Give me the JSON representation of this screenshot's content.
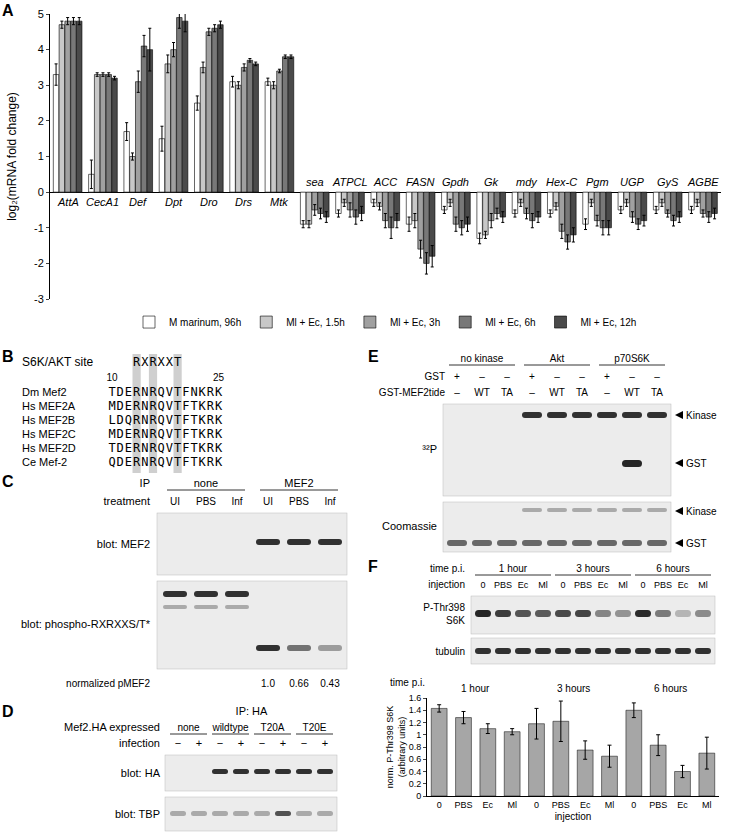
{
  "chart_data": [
    {
      "type": "bar",
      "y_label": "log₂(mRNA fold change)",
      "categories": [
        "AttA",
        "CecA1",
        "Def",
        "Dpt",
        "Dro",
        "Drs",
        "Mtk",
        "sea",
        "ATPCL",
        "ACC",
        "FASN",
        "Gpdh",
        "Gk",
        "mdy",
        "Hex-C",
        "Pgm",
        "UGP",
        "GyS",
        "AGBE"
      ],
      "series": [
        {
          "name": "M marinum, 96h",
          "color": "#ffffff",
          "values": [
            3.3,
            0.5,
            1.7,
            1.5,
            2.5,
            3.1,
            3.1,
            -0.9,
            -0.6,
            -0.3,
            -0.9,
            -0.5,
            -1.3,
            -0.6,
            -0.6,
            -0.9,
            -0.5,
            -0.5,
            -0.5
          ],
          "errors": [
            0.3,
            0.4,
            0.25,
            0.35,
            0.2,
            0.15,
            0.1,
            0.1,
            0.1,
            0.1,
            0.2,
            0.1,
            0.15,
            0.1,
            0.1,
            0.15,
            0.1,
            0.1,
            0.1
          ]
        },
        {
          "name": "Ml + Ec, 1.5h",
          "color": "#c8c8c8",
          "values": [
            4.7,
            3.3,
            1.0,
            3.6,
            3.5,
            3.0,
            3.0,
            -0.9,
            -0.3,
            -0.4,
            -0.8,
            -0.3,
            -1.2,
            -0.3,
            -0.4,
            -0.3,
            -0.3,
            -0.3,
            -0.3
          ],
          "errors": [
            0.1,
            0.05,
            0.1,
            0.25,
            0.15,
            0.1,
            0.1,
            0.1,
            0.1,
            0.1,
            0.2,
            0.1,
            0.1,
            0.1,
            0.1,
            0.1,
            0.1,
            0.1,
            0.1
          ]
        },
        {
          "name": "Ml + Ec, 3h",
          "color": "#a0a0a0",
          "values": [
            4.8,
            3.3,
            3.1,
            4.0,
            4.5,
            3.5,
            3.4,
            -0.5,
            -0.5,
            -0.8,
            -1.6,
            -0.9,
            -0.8,
            -0.6,
            -1.1,
            -0.8,
            -0.7,
            -0.6,
            -0.6
          ],
          "errors": [
            0.1,
            0.05,
            0.3,
            0.2,
            0.1,
            0.1,
            0.05,
            0.15,
            0.2,
            0.2,
            0.25,
            0.2,
            0.2,
            0.15,
            0.2,
            0.15,
            0.15,
            0.1,
            0.1
          ]
        },
        {
          "name": "Ml + Ec, 6h",
          "color": "#787878",
          "values": [
            4.8,
            3.3,
            4.1,
            4.9,
            4.6,
            3.7,
            3.8,
            -0.6,
            -0.7,
            -1.0,
            -2.0,
            -1.0,
            -0.6,
            -0.8,
            -1.4,
            -1.0,
            -0.9,
            -0.8,
            -0.7
          ],
          "errors": [
            0.1,
            0.05,
            0.3,
            0.3,
            0.1,
            0.05,
            0.05,
            0.15,
            0.2,
            0.3,
            0.3,
            0.2,
            0.15,
            0.2,
            0.2,
            0.2,
            0.15,
            0.15,
            0.15
          ]
        },
        {
          "name": "Ml + Ec, 12h",
          "color": "#4a4a4a",
          "values": [
            4.8,
            3.2,
            4.0,
            4.8,
            4.7,
            3.6,
            3.8,
            -0.7,
            -0.6,
            -0.8,
            -1.8,
            -0.9,
            -0.7,
            -0.7,
            -1.2,
            -1.0,
            -0.8,
            -0.7,
            -0.6
          ],
          "errors": [
            0.1,
            0.05,
            0.6,
            0.3,
            0.1,
            0.05,
            0.05,
            0.15,
            0.2,
            0.2,
            0.3,
            0.2,
            0.15,
            0.15,
            0.2,
            0.2,
            0.15,
            0.15,
            0.15
          ]
        }
      ],
      "ylim": [
        -3,
        5
      ],
      "yticks": [
        -3,
        -2,
        -1,
        0,
        1,
        2,
        3,
        4,
        5
      ],
      "grid": false,
      "legend": "bottom",
      "tick_labels": "y"
    },
    {
      "type": "bar",
      "y_label": [
        "norm. P-Thr398 S6K",
        "(arbitrary units)"
      ],
      "x_label": "injection",
      "group_title": "time p.i.",
      "groups": [
        "1 hour",
        "3 hours",
        "6 hours"
      ],
      "categories": [
        "0",
        "PBS",
        "Ec",
        "Ml",
        "0",
        "PBS",
        "Ec",
        "Ml",
        "0",
        "PBS",
        "Ec",
        "Ml"
      ],
      "values": [
        1.43,
        1.28,
        1.1,
        1.05,
        1.18,
        1.22,
        0.75,
        0.65,
        1.4,
        0.83,
        0.4,
        0.7
      ],
      "errors": [
        0.06,
        0.1,
        0.08,
        0.05,
        0.25,
        0.33,
        0.15,
        0.18,
        0.12,
        0.17,
        0.1,
        0.26
      ],
      "color": "#a6a6a6",
      "ylim": [
        0,
        1.6
      ],
      "yticks": [
        0,
        0.2,
        0.4,
        0.6,
        0.8,
        1,
        1.2,
        1.4,
        1.6
      ],
      "grid": false
    }
  ],
  "panels": {
    "A": {
      "label": "A"
    },
    "B": {
      "label": "B",
      "site_name": "S6K/AKT site",
      "site_motif": "RXRXXT",
      "positions": [
        "10",
        "25"
      ],
      "rows": [
        [
          "Dm Mef2",
          "TDERNRQVTFNKRK"
        ],
        [
          "Hs MEF2A",
          "MDERNRQVTFTKRK"
        ],
        [
          "Hs MEF2B",
          "LDQRNRQVTFTKRK"
        ],
        [
          "Hs MEF2C",
          "MDERNRQVTFTKRK"
        ],
        [
          "Hs MEF2D",
          "TDERNRQVTFTKRK"
        ],
        [
          "Ce Mef-2",
          "QDERNRQVTFTKRK"
        ]
      ]
    },
    "C": {
      "label": "C",
      "groups_name": "IP",
      "groups": [
        "none",
        "MEF2"
      ],
      "lanes_name": "treatment",
      "lanes": [
        "UI",
        "PBS",
        "Inf",
        "UI",
        "PBS",
        "Inf"
      ],
      "blots": [
        "blot: MEF2",
        "blot: phospho-RXRXXS/T*"
      ],
      "quant": {
        "name": "normalized pMEF2",
        "values": [
          1.0,
          0.66,
          0.43
        ],
        "value_labels": [
          "1.0",
          "0.66",
          "0.43"
        ]
      }
    },
    "D": {
      "label": "D",
      "title": "IP: HA",
      "groups_name": "Mef2.HA expressed",
      "groups": [
        "none",
        "wildtype",
        "T20A",
        "T20E"
      ],
      "lanes_name": "infection",
      "lanes": [
        "−",
        "+",
        "−",
        "+",
        "−",
        "+",
        "−",
        "+"
      ],
      "blots": [
        "blot: HA",
        "blot: TBP"
      ]
    },
    "E": {
      "label": "E",
      "groups": [
        "no kinase",
        "Akt",
        "p70S6K"
      ],
      "rows": [
        {
          "name": "GST",
          "lanes": [
            "+",
            "–",
            "–",
            "+",
            "–",
            "–",
            "+",
            "–",
            "–"
          ]
        },
        {
          "name": "GST-MEF2tide",
          "lanes": [
            "–",
            "WT",
            "TA",
            "–",
            "WT",
            "TA",
            "–",
            "WT",
            "TA"
          ]
        }
      ],
      "blots": [
        {
          "name": "³²P",
          "markers": [
            "Kinase",
            "GST"
          ]
        },
        {
          "name": "Coomassie",
          "markers": [
            "Kinase",
            "GST"
          ]
        }
      ]
    },
    "F": {
      "label": "F",
      "groups_name": "time p.i.",
      "groups": [
        "1 hour",
        "3 hours",
        "6 hours"
      ],
      "lanes_name": "injection",
      "lanes": [
        "0",
        "PBS",
        "Ec",
        "Ml",
        "0",
        "PBS",
        "Ec",
        "Ml",
        "0",
        "PBS",
        "Ec",
        "Ml"
      ],
      "blots": [
        [
          "P-Thr398",
          "S6K"
        ],
        [
          "tubulin"
        ]
      ]
    }
  }
}
